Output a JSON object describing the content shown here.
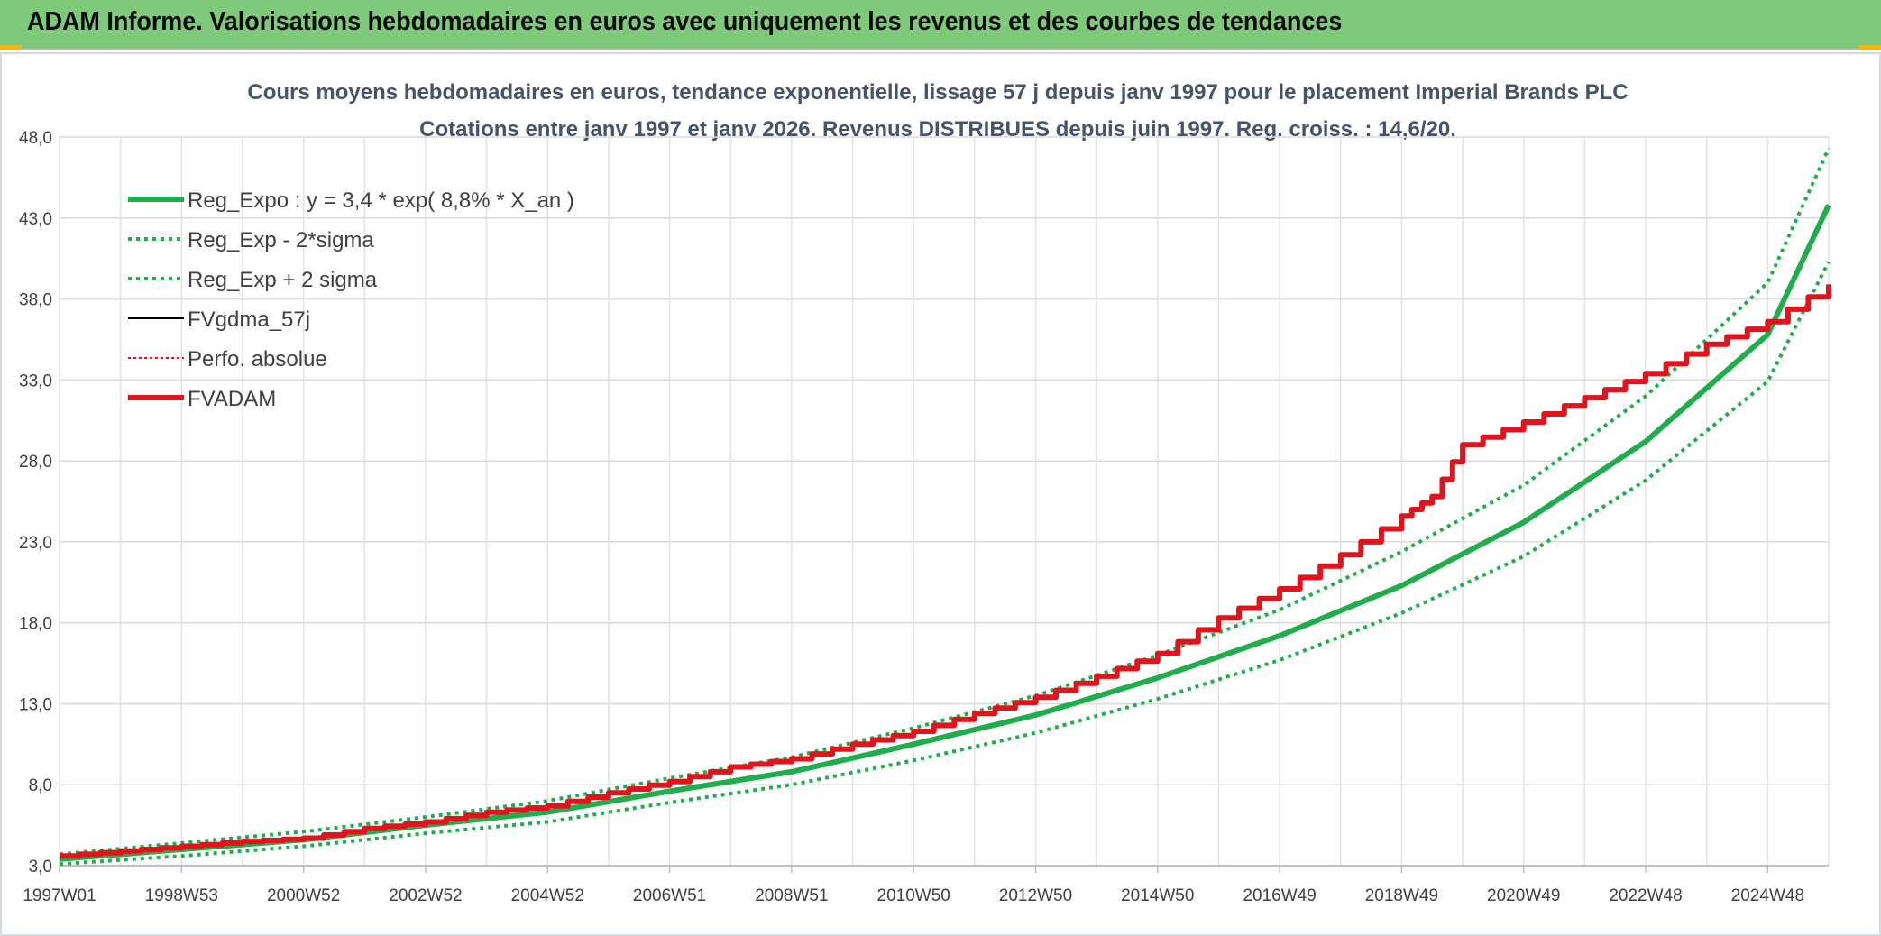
{
  "banner": {
    "title": "ADAM Informe. Valorisations hebdomadaires en euros avec uniquement les revenus et des courbes de tendances",
    "background": "#7ec97a"
  },
  "chart_data": {
    "type": "line",
    "title": "Cours moyens hebdomadaires en euros, tendance exponentielle, lissage 57 j depuis janv 1997 pour le placement Imperial Brands PLC",
    "subtitle": "Cotations entre janv 1997 et janv 2026. Revenus DISTRIBUES depuis juin 1997. Reg. croiss. : 14,6/20.",
    "xlabel": "",
    "ylabel": "",
    "ylim": [
      3.0,
      48.0
    ],
    "xlim": [
      1997.0,
      2026.0
    ],
    "y_ticks": [
      "3,0",
      "8,0",
      "13,0",
      "18,0",
      "23,0",
      "28,0",
      "33,0",
      "38,0",
      "43,0",
      "48,0"
    ],
    "x_ticks": [
      {
        "label": "1997W01",
        "x": 1997.0
      },
      {
        "label": "1998W53",
        "x": 1999.0
      },
      {
        "label": "2000W52",
        "x": 2001.0
      },
      {
        "label": "2002W52",
        "x": 2003.0
      },
      {
        "label": "2004W52",
        "x": 2005.0
      },
      {
        "label": "2006W51",
        "x": 2007.0
      },
      {
        "label": "2008W51",
        "x": 2009.0
      },
      {
        "label": "2010W50",
        "x": 2011.0
      },
      {
        "label": "2012W50",
        "x": 2013.0
      },
      {
        "label": "2014W50",
        "x": 2015.0
      },
      {
        "label": "2016W49",
        "x": 2017.0
      },
      {
        "label": "2018W49",
        "x": 2019.0
      },
      {
        "label": "2020W49",
        "x": 2021.0
      },
      {
        "label": "2022W48",
        "x": 2023.0
      },
      {
        "label": "2024W48",
        "x": 2025.0
      }
    ],
    "grid": true,
    "legend_placement": "top-left",
    "series": [
      {
        "name": "Reg_Expo : y = 3,4 * exp( 8,8% *  X_an )",
        "color": "#1fae4b",
        "style": "solid",
        "width": 6,
        "x": [
          1997,
          1999,
          2001,
          2003,
          2005,
          2007,
          2009,
          2011,
          2013,
          2015,
          2017,
          2019,
          2021,
          2023,
          2025,
          2026
        ],
        "values": [
          3.4,
          4.0,
          4.6,
          5.5,
          6.3,
          7.6,
          8.8,
          10.5,
          12.3,
          14.6,
          17.2,
          20.3,
          24.2,
          29.2,
          35.8,
          43.8
        ]
      },
      {
        "name": "Reg_Exp - 2*sigma",
        "color": "#1fae4b",
        "style": "dotted",
        "width": 4,
        "x": [
          1997,
          1999,
          2001,
          2003,
          2005,
          2007,
          2009,
          2011,
          2013,
          2015,
          2017,
          2019,
          2021,
          2023,
          2025,
          2026
        ],
        "values": [
          3.1,
          3.6,
          4.2,
          5.0,
          5.7,
          6.9,
          8.0,
          9.5,
          11.2,
          13.3,
          15.7,
          18.6,
          22.1,
          26.8,
          32.9,
          40.3
        ]
      },
      {
        "name": "Reg_Exp + 2 sigma",
        "color": "#1fae4b",
        "style": "dotted",
        "width": 4,
        "x": [
          1997,
          1999,
          2001,
          2003,
          2005,
          2007,
          2009,
          2011,
          2013,
          2015,
          2017,
          2019,
          2021,
          2023,
          2025,
          2026
        ],
        "values": [
          3.7,
          4.4,
          5.1,
          6.0,
          7.0,
          8.4,
          9.7,
          11.5,
          13.5,
          16.0,
          18.8,
          22.4,
          26.5,
          32.0,
          39.0,
          47.3
        ]
      },
      {
        "name": "FVgdma_57j",
        "color": "#000000",
        "style": "solid",
        "width": 2,
        "x": [
          1997,
          1998,
          1999,
          2000,
          2001,
          2002,
          2003,
          2004,
          2005,
          2006,
          2007,
          2008,
          2009,
          2010,
          2011,
          2012,
          2013,
          2014,
          2015,
          2016,
          2017,
          2018,
          2019,
          2019.5,
          2020,
          2021,
          2022,
          2023,
          2024,
          2025,
          2026
        ],
        "values": [
          3.6,
          3.9,
          4.2,
          4.5,
          4.7,
          5.3,
          5.7,
          6.3,
          6.7,
          7.5,
          8.2,
          9.1,
          9.6,
          10.5,
          11.3,
          12.4,
          13.4,
          14.7,
          16.1,
          18.3,
          20.1,
          22.2,
          24.6,
          25.8,
          29.0,
          30.4,
          31.9,
          33.4,
          35.2,
          36.6,
          38.9
        ]
      },
      {
        "name": "Perfo. absolue",
        "color": "#e0141c",
        "style": "dotted",
        "width": 2,
        "x": [
          1997,
          1998,
          1999,
          2000,
          2001,
          2002,
          2003,
          2004,
          2005,
          2006,
          2007,
          2008,
          2009,
          2010,
          2011,
          2012,
          2013,
          2014,
          2015,
          2016,
          2017,
          2018,
          2019,
          2019.5,
          2020,
          2021,
          2022,
          2023,
          2024,
          2025,
          2026
        ],
        "values": [
          3.6,
          3.9,
          4.2,
          4.5,
          4.7,
          5.3,
          5.7,
          6.3,
          6.7,
          7.5,
          8.2,
          9.1,
          9.6,
          10.5,
          11.3,
          12.4,
          13.4,
          14.7,
          16.1,
          18.3,
          20.1,
          22.2,
          24.6,
          25.8,
          29.0,
          30.4,
          31.9,
          33.4,
          35.2,
          36.6,
          38.9
        ]
      },
      {
        "name": "FVADAM",
        "color": "#e0141c",
        "style": "solid",
        "width": 6,
        "x": [
          1997,
          1998,
          1999,
          2000,
          2001,
          2002,
          2003,
          2004,
          2005,
          2006,
          2007,
          2008,
          2009,
          2010,
          2011,
          2012,
          2013,
          2014,
          2015,
          2016,
          2017,
          2018,
          2019,
          2019.5,
          2020,
          2021,
          2022,
          2023,
          2024,
          2025,
          2026
        ],
        "values": [
          3.6,
          3.9,
          4.2,
          4.5,
          4.7,
          5.3,
          5.7,
          6.3,
          6.7,
          7.5,
          8.2,
          9.1,
          9.6,
          10.5,
          11.3,
          12.4,
          13.4,
          14.7,
          16.1,
          18.3,
          20.1,
          22.2,
          24.6,
          25.8,
          29.0,
          30.4,
          31.9,
          33.4,
          35.2,
          36.6,
          38.9
        ]
      }
    ]
  }
}
